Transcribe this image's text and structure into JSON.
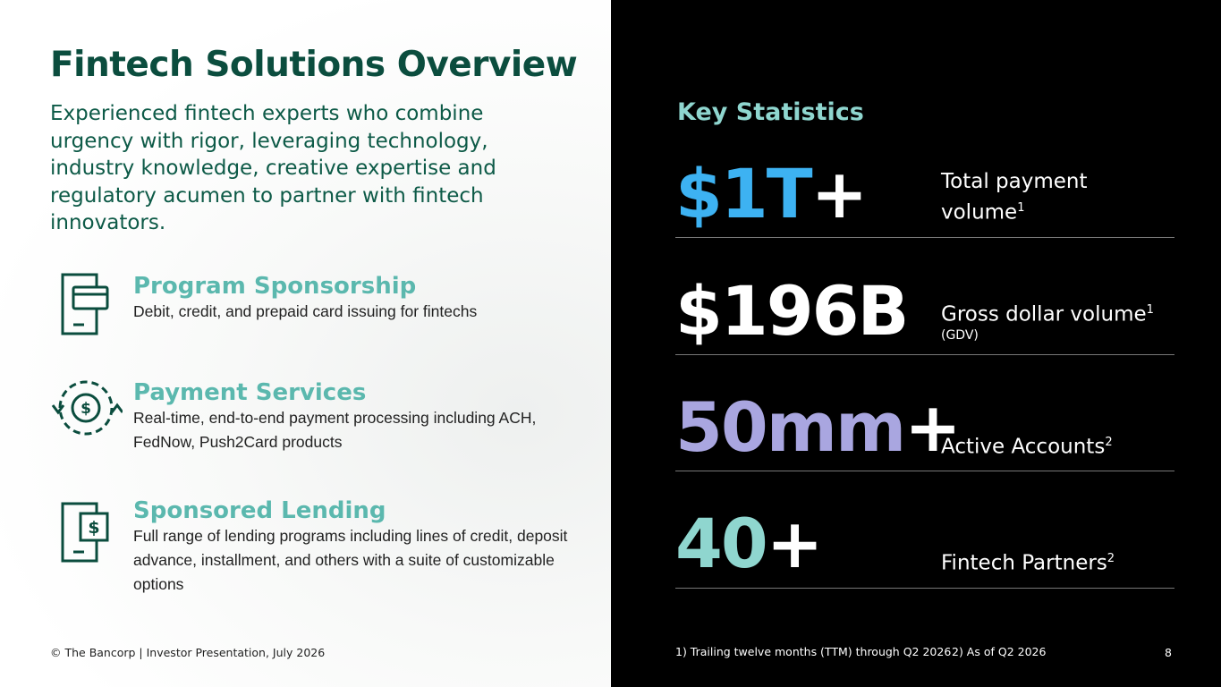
{
  "header": {
    "title": "Fintech Solutions Overview",
    "subtitle": "Experienced fintech experts who combine urgency with rigor, leveraging technology, industry knowledge, creative expertise and regulatory acumen to partner with fintech innovators."
  },
  "services": [
    {
      "title": "Program Sponsorship",
      "description": "Debit, credit, and prepaid card issuing for fintechs"
    },
    {
      "title": "Payment Services",
      "description": "Real-time, end-to-end payment processing including ACH, FedNow, Push2Card products"
    },
    {
      "title": "Sponsored Lending",
      "description": "Full range of lending programs including lines of credit, deposit advance, installment, and others with a suite of customizable options"
    }
  ],
  "stats_heading": "Key Statistics",
  "stats": [
    {
      "value": "$1T",
      "suffix": "+",
      "label": "Total payment volume",
      "note": "1"
    },
    {
      "value": "$196B",
      "label": "Gross dollar volume",
      "note": "1",
      "detail": "(GDV)"
    },
    {
      "value": "50mm",
      "suffix": "+",
      "label": "Active Accounts",
      "note": "2"
    },
    {
      "value": "40",
      "suffix": "+",
      "label": "Fintech Partners",
      "note": "2"
    }
  ],
  "footer": {
    "copyright": "© The Bancorp | Investor Presentation, July 2026",
    "footnotes": [
      "1) Trailing twelve months (TTM) through Q2 2026",
      "2) As of Q2 2026"
    ],
    "page": "8"
  }
}
